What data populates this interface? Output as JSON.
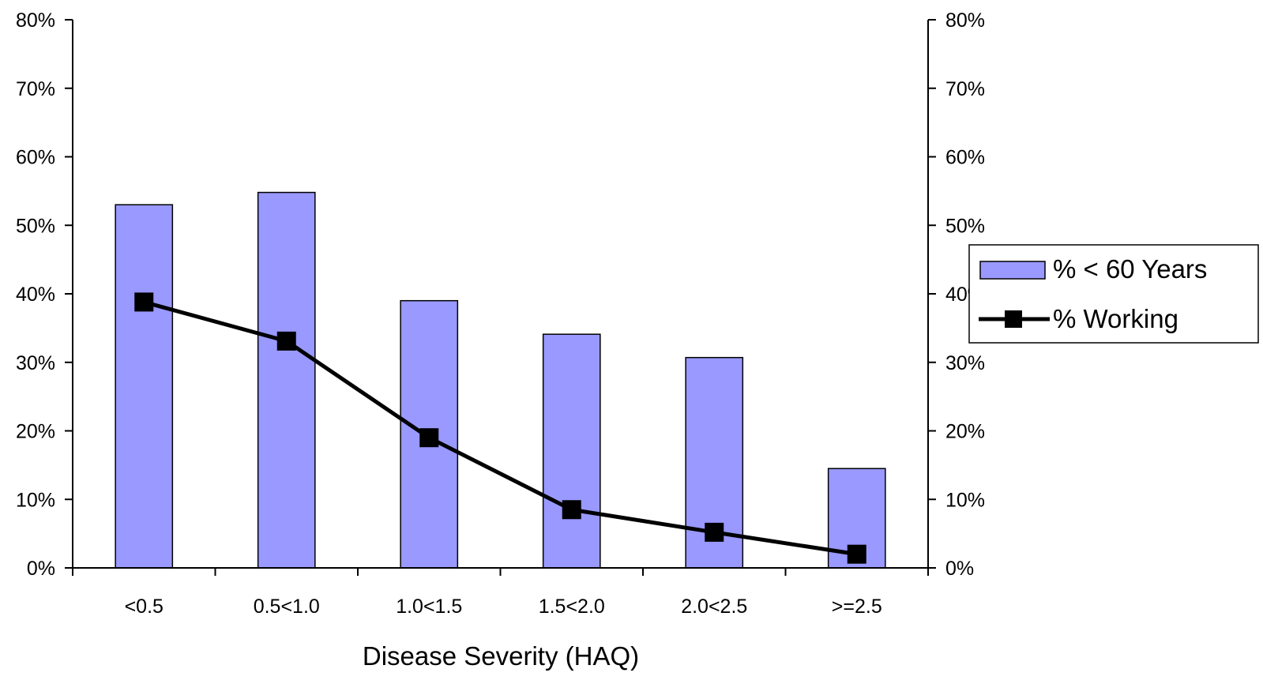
{
  "chart_data": {
    "type": "bar",
    "title": "",
    "xlabel": "Disease Severity (HAQ)",
    "ylabel": "",
    "categories": [
      "<0.5",
      "0.5<1.0",
      "1.0<1.5",
      "1.5<2.0",
      "2.0<2.5",
      ">=2.5"
    ],
    "series": [
      {
        "name": "% < 60 Years",
        "type": "bar",
        "axis": "left",
        "color": "#9999ff",
        "values": [
          0.53,
          0.548,
          0.39,
          0.341,
          0.307,
          0.145
        ]
      },
      {
        "name": "% Working",
        "type": "line",
        "axis": "right",
        "marker": "square",
        "color": "#000000",
        "values": [
          0.388,
          0.331,
          0.19,
          0.085,
          0.052,
          0.02
        ]
      }
    ],
    "ylim": [
      0,
      0.8
    ],
    "y2lim": [
      0,
      0.8
    ],
    "y_ticks": [
      "0%",
      "10%",
      "20%",
      "30%",
      "40%",
      "50%",
      "60%",
      "70%",
      "80%"
    ],
    "y2_ticks": [
      "0%",
      "10%",
      "20%",
      "30%",
      "40%",
      "50%",
      "60%",
      "70%",
      "80%"
    ],
    "grid": false,
    "legend_position": "right"
  }
}
